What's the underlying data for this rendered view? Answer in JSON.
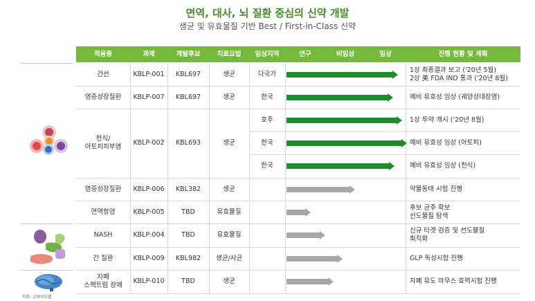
{
  "header": {
    "title": "면역, 대사, 뇌 질환 중심의 신약 개발",
    "subtitle": "생균 및 유효물질 기반 Best / First-in-Class 신약"
  },
  "columns": [
    "적응증",
    "과제",
    "개발후보",
    "치료요법",
    "임상지역",
    "연구",
    "비임상",
    "임상",
    "진행 현황 및 계획"
  ],
  "rows": [
    {
      "indication": "건선",
      "project": "KBLP-001",
      "candidate": "KBL697",
      "therapy": "생균",
      "region": "다국가",
      "stage": 0.92,
      "color": "green",
      "status": "1상 최종결과 보고 ('20년 5월)\n2상 美 FDA IND 통과 ('20년 8월)"
    },
    {
      "indication": "염증성장질환",
      "project": "KBLP-007",
      "candidate": "KBL697",
      "therapy": "생균",
      "region": "한국",
      "stage": 0.88,
      "color": "green",
      "status": "예비 유효성 임상 (궤양성대장염)"
    },
    {
      "indication": "천식/\n아토피피부염",
      "project": "KBLP-002",
      "candidate": "KBL693",
      "therapy": "생균",
      "region": "호주",
      "stage": 0.96,
      "color": "green",
      "status": "1상 투약 개시 ('20년 8월)"
    },
    {
      "indication": "",
      "project": "",
      "candidate": "",
      "therapy": "",
      "region": "한국",
      "stage": 1.0,
      "color": "green",
      "status": "예비 유효성 임상 (아토피)"
    },
    {
      "indication": "",
      "project": "",
      "candidate": "",
      "therapy": "",
      "region": "한국",
      "stage": 0.89,
      "color": "green",
      "status": "예비 유효성 임상 (천식)"
    },
    {
      "indication": "염증성장질환",
      "project": "KBLP-006",
      "candidate": "KBL382",
      "therapy": "생균",
      "region": "",
      "stage": 0.55,
      "color": "gray",
      "status": "약물동태 시험 진행"
    },
    {
      "indication": "면역항암",
      "project": "KBLP-005",
      "candidate": "TBD",
      "therapy": "유효물질",
      "region": "",
      "stage": 0.16,
      "color": "gray",
      "status": "후보 균주 확보\n선도물질 탐색"
    },
    {
      "indication": "NASH",
      "project": "KBLP-004",
      "candidate": "TBD",
      "therapy": "유효물질",
      "region": "",
      "stage": 0.29,
      "color": "gray",
      "status": "신규 타겟 검증 및 선도물질\n최적화"
    },
    {
      "indication": "간 질환",
      "project": "KBLP-009",
      "candidate": "KBL982",
      "therapy": "생균/사균",
      "region": "",
      "stage": 0.44,
      "color": "gray",
      "status": "GLP 독성시험 진행"
    },
    {
      "indication": "자폐\n스펙트럼 장애",
      "project": "KBLP-010",
      "candidate": "TBD",
      "therapy": "생균",
      "region": "",
      "stage": 0.36,
      "color": "gray",
      "status": "자폐 유도 마우스 효력시험 진행"
    }
  ],
  "source": "자료: 고바이오랩",
  "colors": {
    "header": "#74b83c",
    "title": "#4a8a2c",
    "bar_green": "#1f8c2b",
    "bar_gray": "#a7a7a7"
  },
  "icons": [
    "immune-cells-icon",
    "organs-icon",
    "brain-icon"
  ]
}
